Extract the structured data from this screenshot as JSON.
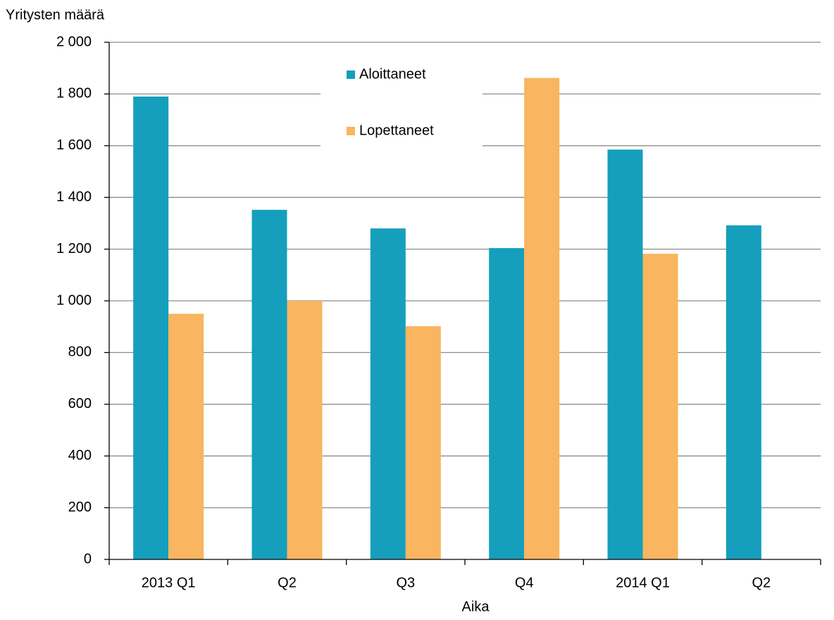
{
  "chart_data": {
    "type": "bar",
    "y_label": "Yritysten määrä",
    "x_label": "Aika",
    "categories": [
      "2013 Q1",
      "Q2",
      "Q3",
      "Q4",
      "2014 Q1",
      "Q2"
    ],
    "series": [
      {
        "name": "Aloittaneet",
        "color": "#159fbd",
        "values": [
          1790,
          1352,
          1280,
          1204,
          1585,
          1292
        ]
      },
      {
        "name": "Lopettaneet",
        "color": "#f9b55f",
        "values": [
          950,
          1000,
          902,
          1862,
          1182,
          null
        ]
      }
    ],
    "ylim": [
      0,
      2000
    ],
    "yticks": [
      0,
      200,
      400,
      600,
      800,
      {
        "value": 1000,
        "label": "1 000"
      },
      {
        "value": 1200,
        "label": "1 200"
      },
      {
        "value": 1400,
        "label": "1 400"
      },
      {
        "value": 1600,
        "label": "1 600"
      },
      {
        "value": 1800,
        "label": "1 800"
      },
      {
        "value": 2000,
        "label": "2 000"
      }
    ],
    "grid": true,
    "legend": "top-center"
  }
}
